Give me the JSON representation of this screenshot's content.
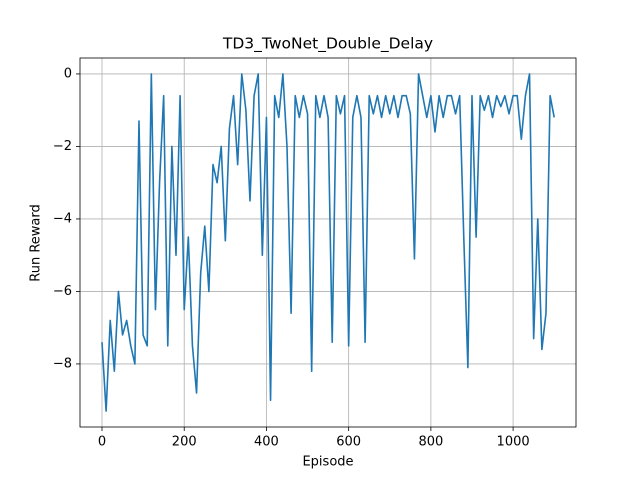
{
  "chart_data": {
    "type": "line",
    "title": "TD3_TwoNet_Double_Delay",
    "xlabel": "Episode",
    "ylabel": "Run Reward",
    "x": [
      0,
      10,
      20,
      30,
      40,
      50,
      60,
      70,
      80,
      90,
      100,
      110,
      120,
      130,
      140,
      150,
      160,
      170,
      180,
      190,
      200,
      210,
      220,
      230,
      240,
      250,
      260,
      270,
      280,
      290,
      300,
      310,
      320,
      330,
      340,
      350,
      360,
      370,
      380,
      390,
      400,
      410,
      420,
      430,
      440,
      450,
      460,
      470,
      480,
      490,
      500,
      510,
      520,
      530,
      540,
      550,
      560,
      570,
      580,
      590,
      600,
      610,
      620,
      630,
      640,
      650,
      660,
      670,
      680,
      690,
      700,
      710,
      720,
      730,
      740,
      750,
      760,
      770,
      780,
      790,
      800,
      810,
      820,
      830,
      840,
      850,
      860,
      870,
      880,
      890,
      900,
      910,
      920,
      930,
      940,
      950,
      960,
      970,
      980,
      990,
      1000,
      1010,
      1020,
      1030,
      1040,
      1050,
      1060,
      1070,
      1080,
      1090,
      1100
    ],
    "series": [
      {
        "name": "Run Reward",
        "color": "#1f77b4",
        "values": [
          -7.4,
          -9.3,
          -6.8,
          -8.2,
          -6.0,
          -7.2,
          -6.8,
          -7.5,
          -8.0,
          -1.3,
          -7.2,
          -7.5,
          0,
          -6.5,
          -3.0,
          -0.6,
          -7.5,
          -2.0,
          -5.0,
          -0.6,
          -6.5,
          -4.5,
          -7.5,
          -8.8,
          -5.5,
          -4.2,
          -6.0,
          -2.5,
          -3.0,
          -2.0,
          -4.6,
          -1.5,
          -0.6,
          -2.5,
          0,
          -1.0,
          -3.5,
          -0.6,
          0,
          -5.0,
          -1.2,
          -9.0,
          -0.6,
          -1.2,
          0,
          -2.0,
          -6.6,
          -0.6,
          -1.2,
          -0.6,
          -1.1,
          -8.2,
          -0.6,
          -1.2,
          -0.6,
          -1.2,
          -7.4,
          -0.6,
          -1.1,
          -0.6,
          -7.5,
          -1.2,
          -0.6,
          -1.2,
          -7.4,
          -0.6,
          -1.1,
          -0.6,
          -1.2,
          -0.6,
          -1.1,
          -0.6,
          -1.2,
          -0.6,
          -0.6,
          -1.1,
          -5.1,
          0,
          -0.6,
          -1.2,
          -0.6,
          -1.6,
          -0.6,
          -1.2,
          -0.6,
          -0.6,
          -1.1,
          -0.6,
          -4.5,
          -8.1,
          -0.6,
          -4.5,
          -0.6,
          -1.0,
          -0.6,
          -1.2,
          -0.6,
          -0.9,
          -0.6,
          -1.1,
          -0.6,
          -0.6,
          -1.8,
          -0.6,
          0,
          -7.3,
          -4.0,
          -7.6,
          -6.6,
          -0.6,
          -1.2
        ]
      }
    ],
    "xlim": [
      -53.5,
      1153
    ],
    "ylim": [
      -9.74,
      0.44
    ],
    "xticks": [
      0,
      200,
      400,
      600,
      800,
      1000
    ],
    "yticks": [
      {
        "value": -8,
        "label": "−8"
      },
      {
        "value": -6,
        "label": "−6"
      },
      {
        "value": -4,
        "label": "−4"
      },
      {
        "value": -2,
        "label": "−2"
      },
      0
    ],
    "grid": true
  }
}
